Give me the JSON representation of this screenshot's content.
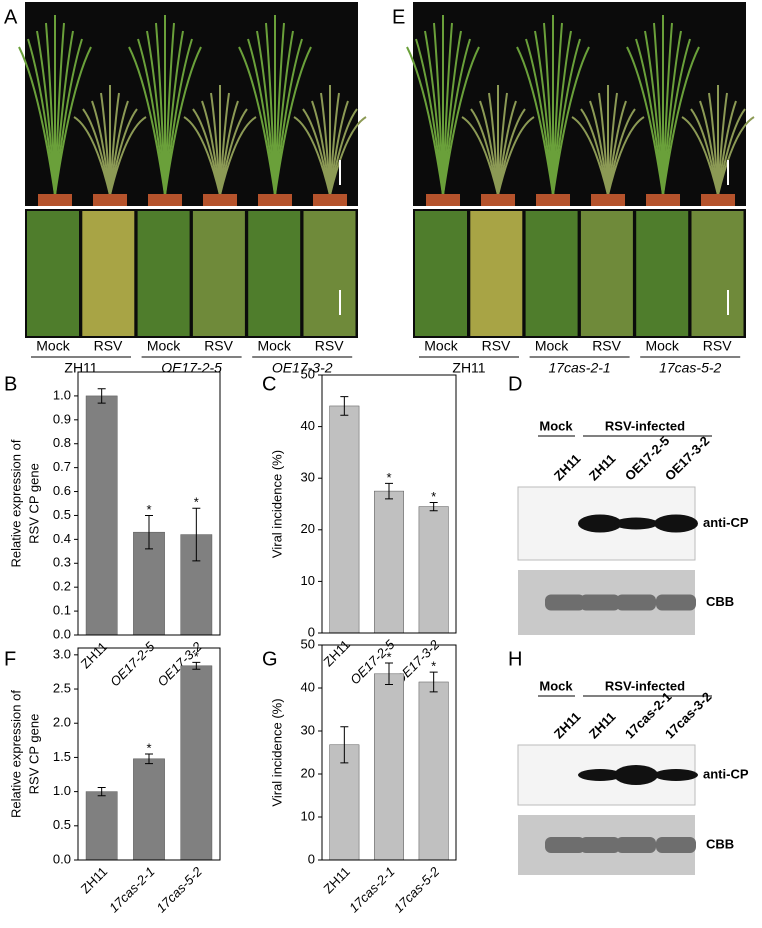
{
  "panel_labels": [
    "A",
    "B",
    "C",
    "D",
    "E",
    "F",
    "G",
    "H"
  ],
  "photo_panels": [
    {
      "groups": [
        {
          "conditions": [
            "Mock",
            "RSV"
          ],
          "genotype": "ZH11"
        },
        {
          "conditions": [
            "Mock",
            "RSV"
          ],
          "genotype": "OE17-2-5"
        },
        {
          "conditions": [
            "Mock",
            "RSV"
          ],
          "genotype": "OE17-3-2"
        }
      ]
    },
    {
      "groups": [
        {
          "conditions": [
            "Mock",
            "RSV"
          ],
          "genotype": "ZH11"
        },
        {
          "conditions": [
            "Mock",
            "RSV"
          ],
          "genotype": "17cas-2-1"
        },
        {
          "conditions": [
            "Mock",
            "RSV"
          ],
          "genotype": "17cas-5-2"
        }
      ]
    }
  ],
  "chart_data": [
    {
      "type": "bar",
      "ylabel": [
        "Relative expression of",
        "RSV CP gene"
      ],
      "categories": [
        "ZH11",
        "OE17-2-5",
        "OE17-3-2"
      ],
      "values": [
        1.0,
        0.43,
        0.42
      ],
      "errors": [
        0.03,
        0.07,
        0.11
      ],
      "significance": [
        null,
        "*",
        "*"
      ],
      "color": "#808080",
      "ylim": [
        0,
        1.1
      ],
      "yticks": [
        {
          "value": 0,
          "label": "0.0"
        },
        0.1,
        0.2,
        0.3,
        0.4,
        0.5,
        0.6,
        0.7,
        0.8,
        0.9,
        {
          "value": 1,
          "label": "1.0"
        }
      ]
    },
    {
      "type": "bar",
      "ylabel": [
        "Viral incidence (%)"
      ],
      "categories": [
        "ZH11",
        "OE17-2-5",
        "OE17-3-2"
      ],
      "values": [
        44,
        27.5,
        24.5
      ],
      "errors": [
        1.8,
        1.5,
        0.8
      ],
      "significance": [
        null,
        "*",
        "*"
      ],
      "color": "#c0c0c0",
      "ylim": [
        0,
        50
      ],
      "yticks": [
        0,
        10,
        20,
        30,
        40,
        50
      ]
    },
    {
      "type": "bar",
      "ylabel": [
        "Relative expression of",
        "RSV CP gene"
      ],
      "categories": [
        "ZH11",
        "17cas-2-1",
        "17cas-5-2"
      ],
      "values": [
        1.0,
        1.48,
        2.84
      ],
      "errors": [
        0.06,
        0.07,
        0.05
      ],
      "significance": [
        null,
        "*",
        "*"
      ],
      "color": "#808080",
      "ylim": [
        0,
        3.1
      ],
      "yticks": [
        {
          "value": 0,
          "label": "0.0"
        },
        0.5,
        {
          "value": 1,
          "label": "1.0"
        },
        1.5,
        {
          "value": 2,
          "label": "2.0"
        },
        2.5,
        {
          "value": 3,
          "label": "3.0"
        }
      ]
    },
    {
      "type": "bar",
      "ylabel": [
        "Viral incidence (%)"
      ],
      "categories": [
        "ZH11",
        "17cas-2-1",
        "17cas-5-2"
      ],
      "values": [
        26.8,
        43.3,
        41.4
      ],
      "errors": [
        4.2,
        2.5,
        2.3
      ],
      "significance": [
        null,
        "*",
        "*"
      ],
      "color": "#c0c0c0",
      "ylim": [
        0,
        50
      ],
      "yticks": [
        0,
        10,
        20,
        30,
        40,
        50
      ]
    }
  ],
  "blots": [
    {
      "mock": "Mock",
      "infected": "RSV-infected",
      "lanes": [
        "ZH11",
        "ZH11",
        "OE17-2-5",
        "OE17-3-2"
      ],
      "bands": [
        "anti-CP",
        "CBB"
      ]
    },
    {
      "mock": "Mock",
      "infected": "RSV-infected",
      "lanes": [
        "ZH11",
        "ZH11",
        "17cas-2-1",
        "17cas-3-2"
      ],
      "bands": [
        "anti-CP",
        "CBB"
      ]
    }
  ]
}
